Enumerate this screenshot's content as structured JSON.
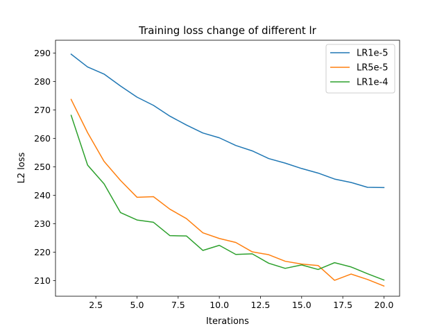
{
  "chart_data": {
    "type": "line",
    "title": "Training loss change of different lr",
    "xlabel": "Iterations",
    "ylabel": "L2 loss",
    "x": [
      1,
      2,
      3,
      4,
      5,
      6,
      7,
      8,
      9,
      10,
      11,
      12,
      13,
      14,
      15,
      16,
      17,
      18,
      19,
      20
    ],
    "xlim": [
      0.05,
      20.95
    ],
    "ylim": [
      204.5,
      294.5
    ],
    "xticks": [
      2.5,
      5.0,
      7.5,
      10.0,
      12.5,
      15.0,
      17.5,
      20.0
    ],
    "xtick_labels": [
      "2.5",
      "5.0",
      "7.5",
      "10.0",
      "12.5",
      "15.0",
      "17.5",
      "20.0"
    ],
    "yticks": [
      210,
      220,
      230,
      240,
      250,
      260,
      270,
      280,
      290
    ],
    "ytick_labels": [
      "210",
      "220",
      "230",
      "240",
      "250",
      "260",
      "270",
      "280",
      "290"
    ],
    "grid": false,
    "legend_position": "top-right",
    "series": [
      {
        "name": "LR1e-5",
        "color": "#1f77b4",
        "values": [
          289.6,
          285.1,
          282.6,
          278.4,
          274.5,
          271.6,
          267.8,
          264.7,
          261.9,
          260.2,
          257.5,
          255.6,
          252.9,
          251.3,
          249.4,
          247.8,
          245.7,
          244.5,
          242.8,
          242.7
        ]
      },
      {
        "name": "LR5e-5",
        "color": "#ff7f0e",
        "values": [
          273.7,
          262.0,
          251.9,
          245.2,
          239.3,
          239.5,
          235.1,
          231.8,
          226.8,
          224.8,
          223.4,
          220.1,
          219.1,
          216.8,
          215.8,
          215.3,
          210.1,
          212.3,
          210.4,
          208.1
        ]
      },
      {
        "name": "LR1e-4",
        "color": "#2ca02c",
        "values": [
          268.1,
          250.6,
          244.0,
          233.9,
          231.3,
          230.5,
          225.8,
          225.7,
          220.6,
          222.4,
          219.2,
          219.4,
          216.1,
          214.3,
          215.5,
          213.9,
          216.3,
          214.8,
          212.4,
          210.2
        ]
      }
    ]
  }
}
